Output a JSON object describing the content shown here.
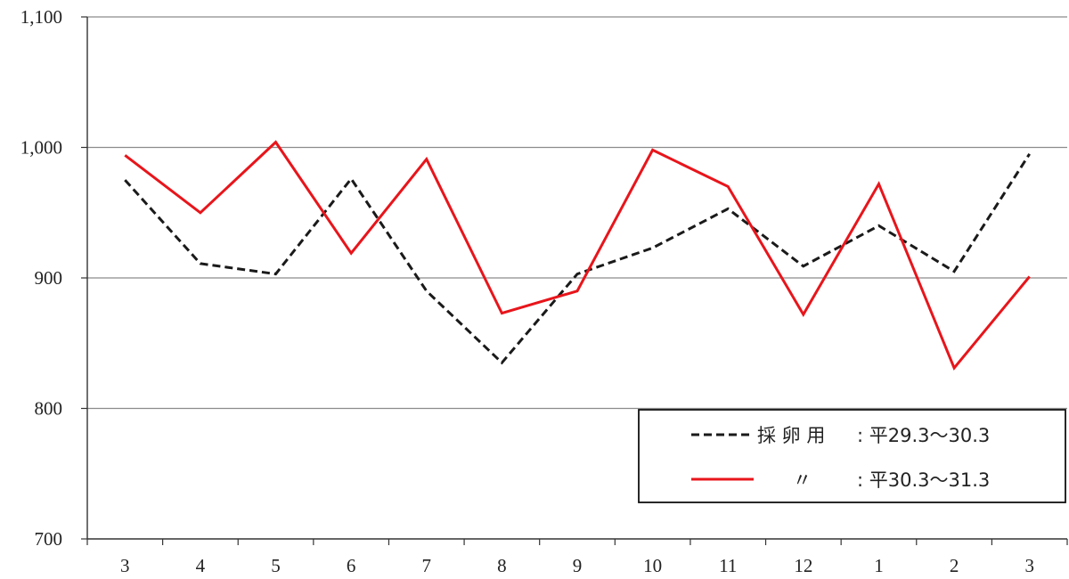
{
  "chart_data": {
    "type": "line",
    "title": "",
    "xlabel": "",
    "ylabel": "",
    "categories": [
      "3",
      "4",
      "5",
      "6",
      "7",
      "8",
      "9",
      "10",
      "11",
      "12",
      "1",
      "2",
      "3"
    ],
    "ylim": [
      700,
      1100
    ],
    "yticks": [
      700,
      800,
      900,
      1000,
      1100
    ],
    "ytick_labels": [
      "700",
      "800",
      "900",
      "1,000",
      "1,100"
    ],
    "grid": "horizontal",
    "legend_position": "bottom-right",
    "series": [
      {
        "name": "採 卵 用 : 平29.3〜30.3",
        "legend_label": "採 卵 用",
        "legend_period": ": 平29.3〜30.3",
        "style": "dashed",
        "color": "#1a1a1a",
        "values": [
          975,
          911,
          903,
          976,
          890,
          835,
          903,
          923,
          953,
          909,
          940,
          905,
          995
        ]
      },
      {
        "name": "〃 : 平30.3〜31.3",
        "legend_label": "〃",
        "legend_period": ": 平30.3〜31.3",
        "style": "solid",
        "color": "#e8151b",
        "values": [
          994,
          950,
          1004,
          919,
          991,
          873,
          890,
          998,
          970,
          872,
          972,
          831,
          901
        ]
      }
    ]
  }
}
